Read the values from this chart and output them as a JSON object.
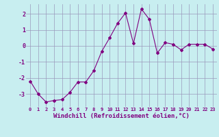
{
  "xlabel": "Windchill (Refroidissement éolien,°C)",
  "x": [
    0,
    1,
    2,
    3,
    4,
    5,
    6,
    7,
    8,
    9,
    10,
    11,
    12,
    13,
    14,
    15,
    16,
    17,
    18,
    19,
    20,
    21,
    22,
    23
  ],
  "y": [
    -2.2,
    -3.0,
    -3.5,
    -3.4,
    -3.35,
    -2.9,
    -2.25,
    -2.25,
    -1.55,
    -0.35,
    0.5,
    1.4,
    2.05,
    0.15,
    2.3,
    1.65,
    -0.45,
    0.2,
    0.1,
    -0.25,
    0.1,
    0.1,
    0.1,
    -0.2
  ],
  "line_color": "#800080",
  "marker": "D",
  "marker_size": 2.0,
  "line_width": 0.8,
  "bg_color": "#c8eef0",
  "grid_color": "#9999bb",
  "ylim": [
    -3.8,
    2.6
  ],
  "xlim": [
    -0.5,
    23.5
  ],
  "yticks": [
    -3,
    -2,
    -1,
    0,
    1,
    2
  ],
  "xticks": [
    0,
    1,
    2,
    3,
    4,
    5,
    6,
    7,
    8,
    9,
    10,
    11,
    12,
    13,
    14,
    15,
    16,
    17,
    18,
    19,
    20,
    21,
    22,
    23
  ],
  "tick_label_color": "#800080",
  "tick_fontsize": 5.0,
  "xlabel_fontsize": 6.5
}
